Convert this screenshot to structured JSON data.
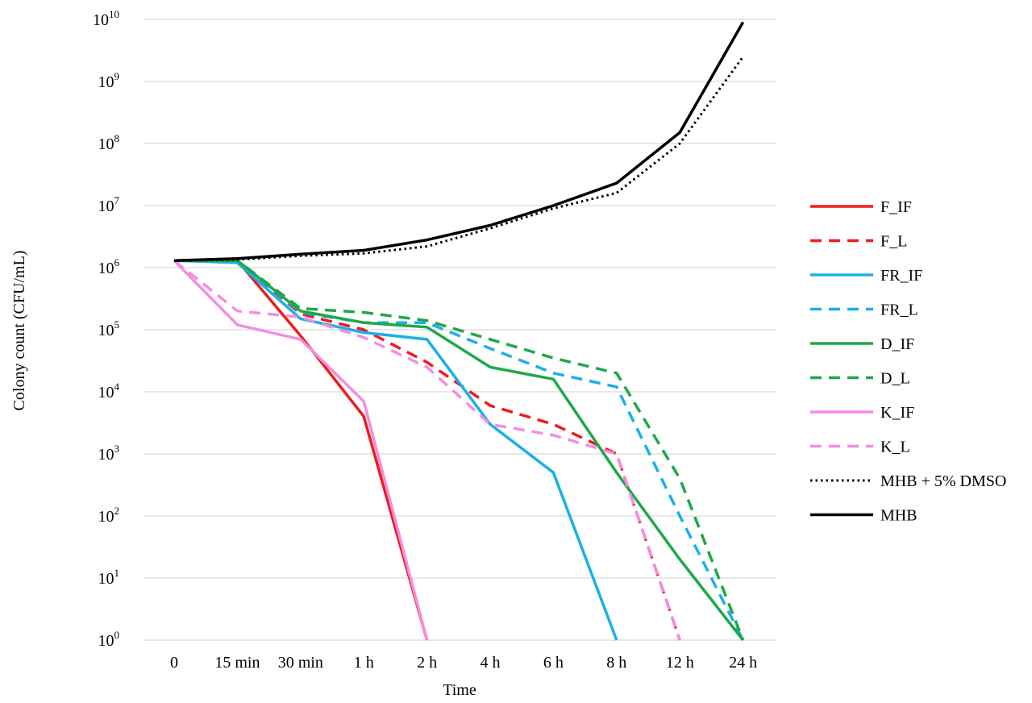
{
  "chart_data": {
    "type": "line",
    "title": "",
    "xlabel": "Time",
    "ylabel": "Colony count (CFU/mL)",
    "y_scale": "log",
    "ylim": [
      1,
      10000000000
    ],
    "y_ticks": [
      {
        "value": 1,
        "base": "10",
        "exp": "0"
      },
      {
        "value": 10,
        "base": "10",
        "exp": "1"
      },
      {
        "value": 100,
        "base": "10",
        "exp": "2"
      },
      {
        "value": 1000,
        "base": "10",
        "exp": "3"
      },
      {
        "value": 10000,
        "base": "10",
        "exp": "4"
      },
      {
        "value": 100000,
        "base": "10",
        "exp": "5"
      },
      {
        "value": 1000000,
        "base": "10",
        "exp": "6"
      },
      {
        "value": 10000000,
        "base": "10",
        "exp": "7"
      },
      {
        "value": 100000000,
        "base": "10",
        "exp": "8"
      },
      {
        "value": 1000000000,
        "base": "10",
        "exp": "9"
      },
      {
        "value": 10000000000,
        "base": "10",
        "exp": "10"
      }
    ],
    "categories": [
      "0",
      "15 min",
      "30 min",
      "1 h",
      "2 h",
      "4 h",
      "6 h",
      "8 h",
      "12 h",
      "24 h"
    ],
    "grid": true,
    "legend_position": "right",
    "series": [
      {
        "name": "F_IF",
        "color": "#ee1c1c",
        "dash": "solid",
        "values": [
          1300000,
          1300000,
          80000,
          4000,
          1,
          null,
          null,
          null,
          null,
          null
        ]
      },
      {
        "name": "F_L",
        "color": "#ee1c1c",
        "dash": "dashed",
        "values": [
          1300000,
          1300000,
          180000,
          100000,
          30000,
          6000,
          3000,
          1000,
          1,
          null
        ]
      },
      {
        "name": "FR_IF",
        "color": "#1ab0e8",
        "dash": "solid",
        "values": [
          1300000,
          1200000,
          150000,
          90000,
          70000,
          3000,
          500,
          1,
          null,
          null
        ]
      },
      {
        "name": "FR_L",
        "color": "#1ab0e8",
        "dash": "dashed",
        "values": [
          1300000,
          1300000,
          190000,
          130000,
          130000,
          50000,
          20000,
          12000,
          100,
          1
        ]
      },
      {
        "name": "D_IF",
        "color": "#1ea84a",
        "dash": "solid",
        "values": [
          1300000,
          1300000,
          200000,
          130000,
          110000,
          25000,
          16000,
          500,
          20,
          1
        ]
      },
      {
        "name": "D_L",
        "color": "#1ea84a",
        "dash": "dashed",
        "values": [
          1300000,
          1300000,
          220000,
          190000,
          140000,
          70000,
          35000,
          20000,
          400,
          1
        ]
      },
      {
        "name": "K_IF",
        "color": "#f28ee0",
        "dash": "solid",
        "values": [
          1300000,
          120000,
          70000,
          7000,
          1,
          null,
          null,
          null,
          null,
          null
        ]
      },
      {
        "name": "K_L",
        "color": "#f28ee0",
        "dash": "dashed",
        "values": [
          1300000,
          200000,
          160000,
          75000,
          25000,
          3000,
          2000,
          1000,
          1,
          null
        ]
      },
      {
        "name": "MHB + 5% DMSO",
        "color": "#000000",
        "dash": "dotted",
        "values": [
          1300000,
          1350000,
          1550000,
          1700000,
          2200000,
          4300000,
          9000000,
          16000000,
          100000000,
          2500000000
        ]
      },
      {
        "name": "MHB",
        "color": "#000000",
        "dash": "solid",
        "values": [
          1300000,
          1400000,
          1650000,
          1900000,
          2800000,
          4800000,
          10000000,
          23000000,
          150000000,
          9000000000
        ]
      }
    ]
  }
}
